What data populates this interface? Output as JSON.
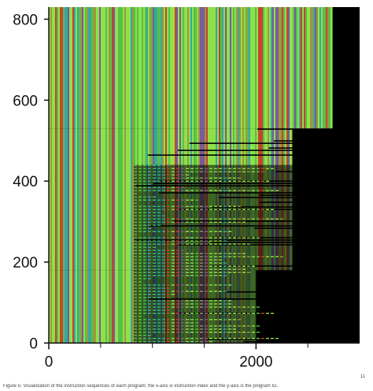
{
  "chart_data": {
    "type": "heatmap",
    "title": "",
    "xlabel": "",
    "ylabel": "",
    "xlim": [
      0,
      3000
    ],
    "ylim": [
      0,
      830
    ],
    "x_ticks": [
      0,
      2000
    ],
    "x_minor_ticks": [
      500,
      1000,
      1500,
      2500
    ],
    "y_ticks": [
      0,
      200,
      400,
      600,
      800
    ],
    "grid": false,
    "legend": "none",
    "colors": {
      "light_green": "#8fe04a",
      "mid_green": "#57c04a",
      "teal": "#3aa7a0",
      "red": "#c8432e",
      "purple": "#7a5a9e",
      "olive": "#9a9a3a",
      "background": "#000000"
    },
    "bands": [
      {
        "name": "full-width region",
        "y_range": [
          530,
          830
        ],
        "x_range": [
          0,
          2740
        ]
      },
      {
        "name": "medium-width region",
        "y_range": [
          180,
          530
        ],
        "x_range": [
          0,
          2350
        ]
      },
      {
        "name": "short-width region",
        "y_range": [
          0,
          180
        ],
        "x_range": [
          0,
          2000
        ]
      }
    ]
  },
  "page_number": "11",
  "caption": "Figure 5: Visualization of the instruction sequences of each program; the x-axis is instruction index and the y-axis is the program ID."
}
